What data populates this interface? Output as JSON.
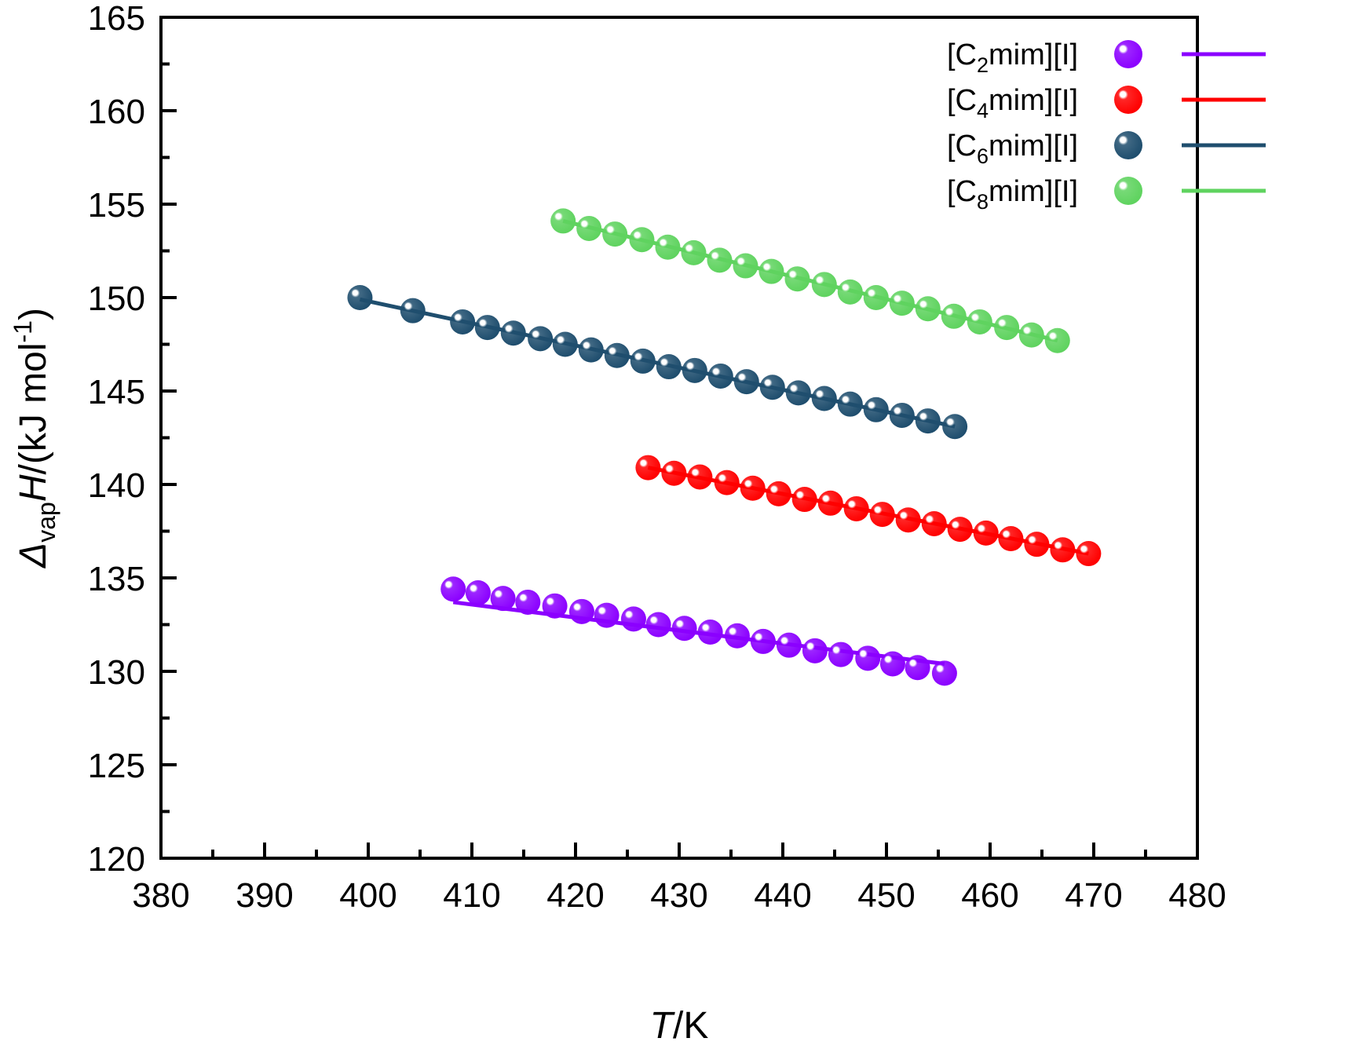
{
  "chart_data": {
    "type": "scatter",
    "title": "",
    "xlabel": {
      "italic": "T",
      "rest": "/K"
    },
    "ylabel": {
      "delta": "Δ",
      "sub": "vap",
      "italic": "H",
      "rest": "/(kJ mol",
      "sup": "-1",
      "close": ")"
    },
    "xlim": [
      380,
      480
    ],
    "ylim": [
      120,
      165
    ],
    "xticks": [
      "380",
      "390",
      "400",
      "410",
      "420",
      "430",
      "440",
      "450",
      "460",
      "470",
      "480"
    ],
    "yticks": [
      "120",
      "125",
      "130",
      "135",
      "140",
      "145",
      "150",
      "155",
      "160",
      "165"
    ],
    "legend_position": "top-right",
    "series": [
      {
        "name": "[C2mim][I]",
        "label": {
          "pre": "[C",
          "sub": "2",
          "post": "mim][I]"
        },
        "color": "#8B00FF",
        "x": [
          408.2,
          410.6,
          413.0,
          415.4,
          418.0,
          420.6,
          423.0,
          425.6,
          428.0,
          430.5,
          433.0,
          435.6,
          438.1,
          440.6,
          443.1,
          445.6,
          448.2,
          450.6,
          453.0,
          455.6
        ],
        "y": [
          134.4,
          134.2,
          133.9,
          133.7,
          133.5,
          133.2,
          133.0,
          132.8,
          132.5,
          132.3,
          132.1,
          131.9,
          131.6,
          131.4,
          131.1,
          130.9,
          130.7,
          130.4,
          130.2,
          129.9
        ],
        "fit": {
          "x": [
            408.2,
            455.6
          ],
          "y": [
            133.7,
            130.4
          ]
        }
      },
      {
        "name": "[C4mim][I]",
        "label": {
          "pre": "[C",
          "sub": "4",
          "post": "mim][I]"
        },
        "color": "#FF0000",
        "x": [
          427.0,
          429.5,
          432.0,
          434.6,
          437.1,
          439.6,
          442.1,
          444.6,
          447.1,
          449.6,
          452.1,
          454.6,
          457.1,
          459.6,
          462.0,
          464.5,
          467.0,
          469.5
        ],
        "y": [
          140.9,
          140.6,
          140.4,
          140.1,
          139.8,
          139.5,
          139.2,
          139.0,
          138.7,
          138.4,
          138.1,
          137.9,
          137.6,
          137.4,
          137.1,
          136.8,
          136.5,
          136.3
        ],
        "fit": {
          "x": [
            427.0,
            469.5
          ],
          "y": [
            140.9,
            136.3
          ]
        }
      },
      {
        "name": "[C6mim][I]",
        "label": {
          "pre": "[C",
          "sub": "6",
          "post": "mim][I]"
        },
        "color": "#1F4E6E",
        "x": [
          399.2,
          404.3,
          409.1,
          411.5,
          414.0,
          416.6,
          419.0,
          421.5,
          424.0,
          426.5,
          429.0,
          431.5,
          434.0,
          436.5,
          439.0,
          441.5,
          444.0,
          446.5,
          449.0,
          451.5,
          454.0,
          456.6
        ],
        "y": [
          150.0,
          149.3,
          148.7,
          148.4,
          148.1,
          147.8,
          147.5,
          147.2,
          146.9,
          146.6,
          146.3,
          146.1,
          145.8,
          145.5,
          145.2,
          144.9,
          144.6,
          144.3,
          144.0,
          143.7,
          143.4,
          143.1
        ],
        "fit": {
          "x": [
            399.2,
            456.6
          ],
          "y": [
            149.9,
            143.1
          ]
        }
      },
      {
        "name": "[C8mim][I]",
        "label": {
          "pre": "[C",
          "sub": "8",
          "post": "mim][I]"
        },
        "color": "#5FD35F",
        "x": [
          418.8,
          421.3,
          423.8,
          426.4,
          428.9,
          431.4,
          433.9,
          436.4,
          438.9,
          441.4,
          444.0,
          446.5,
          449.0,
          451.5,
          454.0,
          456.5,
          459.0,
          461.6,
          464.0,
          466.5
        ],
        "y": [
          154.1,
          153.7,
          153.4,
          153.1,
          152.7,
          152.4,
          152.0,
          151.7,
          151.4,
          151.0,
          150.7,
          150.3,
          150.0,
          149.7,
          149.4,
          149.0,
          148.7,
          148.4,
          148.0,
          147.7
        ],
        "fit": {
          "x": [
            418.8,
            466.5
          ],
          "y": [
            154.1,
            147.7
          ]
        }
      }
    ]
  }
}
